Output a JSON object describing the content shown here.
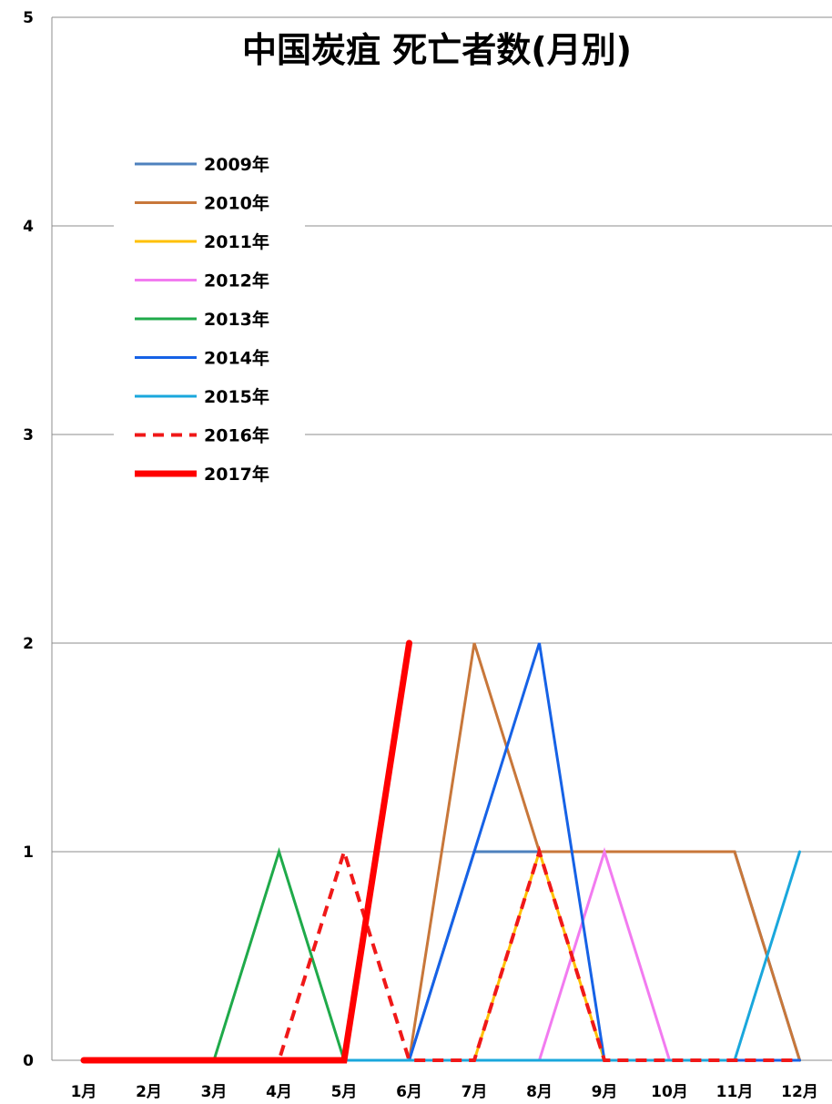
{
  "chart_data": {
    "type": "line",
    "title": "中国炭疽 死亡者数(月別)",
    "xlabel": "",
    "ylabel": "",
    "ylim": [
      0,
      5
    ],
    "yticks": [
      "0",
      "1",
      "2",
      "3",
      "4",
      "5"
    ],
    "categories": [
      "1月",
      "2月",
      "3月",
      "4月",
      "5月",
      "6月",
      "7月",
      "8月",
      "9月",
      "10月",
      "11月",
      "12月"
    ],
    "grid": true,
    "legend_position": "top-left",
    "series": [
      {
        "name": "2009年",
        "color": "#4e81bd",
        "dash": "solid",
        "width": 3,
        "values": [
          0,
          0,
          0,
          0,
          0,
          0,
          1,
          1,
          1,
          1,
          1,
          0
        ]
      },
      {
        "name": "2010年",
        "color": "#c8773a",
        "dash": "solid",
        "width": 3,
        "values": [
          0,
          0,
          0,
          0,
          0,
          0,
          2,
          1,
          1,
          1,
          1,
          0
        ]
      },
      {
        "name": "2011年",
        "color": "#ffc000",
        "dash": "solid",
        "width": 3,
        "values": [
          0,
          0,
          0,
          0,
          0,
          0,
          0,
          1,
          0,
          0,
          0,
          0
        ]
      },
      {
        "name": "2012年",
        "color": "#f27bf0",
        "dash": "solid",
        "width": 3,
        "values": [
          0,
          0,
          0,
          0,
          0,
          0,
          0,
          0,
          1,
          0,
          0,
          0
        ]
      },
      {
        "name": "2013年",
        "color": "#1faa4a",
        "dash": "solid",
        "width": 3,
        "values": [
          0,
          0,
          0,
          1,
          0,
          0,
          0,
          0,
          0,
          0,
          0,
          0
        ]
      },
      {
        "name": "2014年",
        "color": "#1662e6",
        "dash": "solid",
        "width": 3,
        "values": [
          0,
          0,
          0,
          0,
          0,
          0,
          1,
          2,
          0,
          0,
          0,
          0
        ]
      },
      {
        "name": "2015年",
        "color": "#1aa7dc",
        "dash": "solid",
        "width": 3,
        "values": [
          0,
          0,
          0,
          0,
          0,
          0,
          0,
          0,
          0,
          0,
          0,
          1
        ]
      },
      {
        "name": "2016年",
        "color": "#f01818",
        "dash": "dashed",
        "width": 4,
        "values": [
          0,
          0,
          0,
          0,
          1,
          0,
          0,
          1,
          0,
          0,
          0,
          0
        ]
      },
      {
        "name": "2017年",
        "color": "#ff0000",
        "dash": "solid",
        "width": 7,
        "values": [
          0,
          0,
          0,
          0,
          0,
          2,
          null,
          null,
          null,
          null,
          null,
          null
        ]
      }
    ]
  }
}
